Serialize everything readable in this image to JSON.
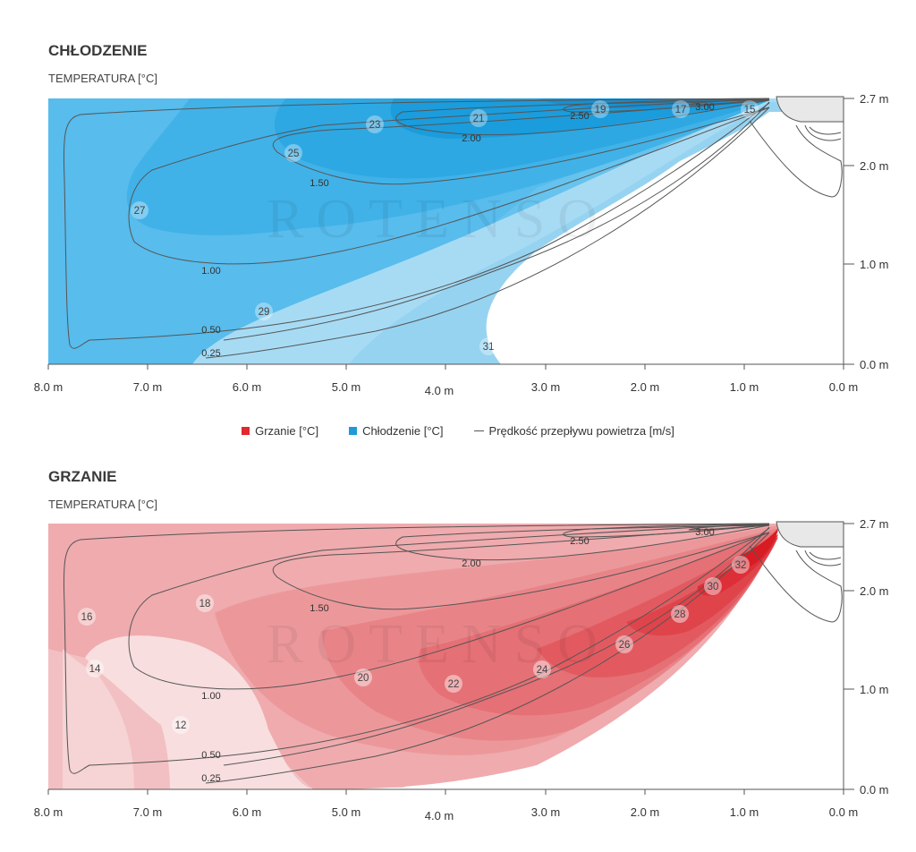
{
  "cooling": {
    "title": "CHŁODZENIE",
    "subtitle": "TEMPERATURA [°C]",
    "temp_labels": [
      "23",
      "21",
      "19",
      "17",
      "15",
      "25",
      "27",
      "29",
      "31"
    ],
    "contour_labels": [
      "2.50",
      "3.00",
      "2.00",
      "1.50",
      "1.00",
      "0.50",
      "0.25"
    ]
  },
  "heating": {
    "title": "GRZANIE",
    "subtitle": "TEMPERATURA [°C]",
    "temp_labels": [
      "32",
      "30",
      "28",
      "26",
      "24",
      "22",
      "20",
      "18",
      "16",
      "14",
      "12"
    ],
    "contour_labels": [
      "2.50",
      "3.00",
      "2.00",
      "1.50",
      "1.00",
      "0.50",
      "0.25"
    ]
  },
  "axes": {
    "x_ticks": [
      "8.0 m",
      "7.0 m",
      "6.0 m",
      "5.0 m",
      "4.0 m",
      "3.0 m",
      "2.0 m",
      "1.0 m",
      "0.0 m"
    ],
    "y_ticks": [
      "2.7 m",
      "2.0 m",
      "1.0 m",
      "0.0 m"
    ]
  },
  "legend": {
    "heating_label": "Grzanie [°C]",
    "cooling_label": "Chłodzenie [°C]",
    "airflow_label": "Prędkość przepływu powietrza [m/s]"
  },
  "watermark": "ROTENSO",
  "colors": {
    "heating": "#e0282e",
    "cooling": "#1f9ad6",
    "contour": "#555555"
  }
}
